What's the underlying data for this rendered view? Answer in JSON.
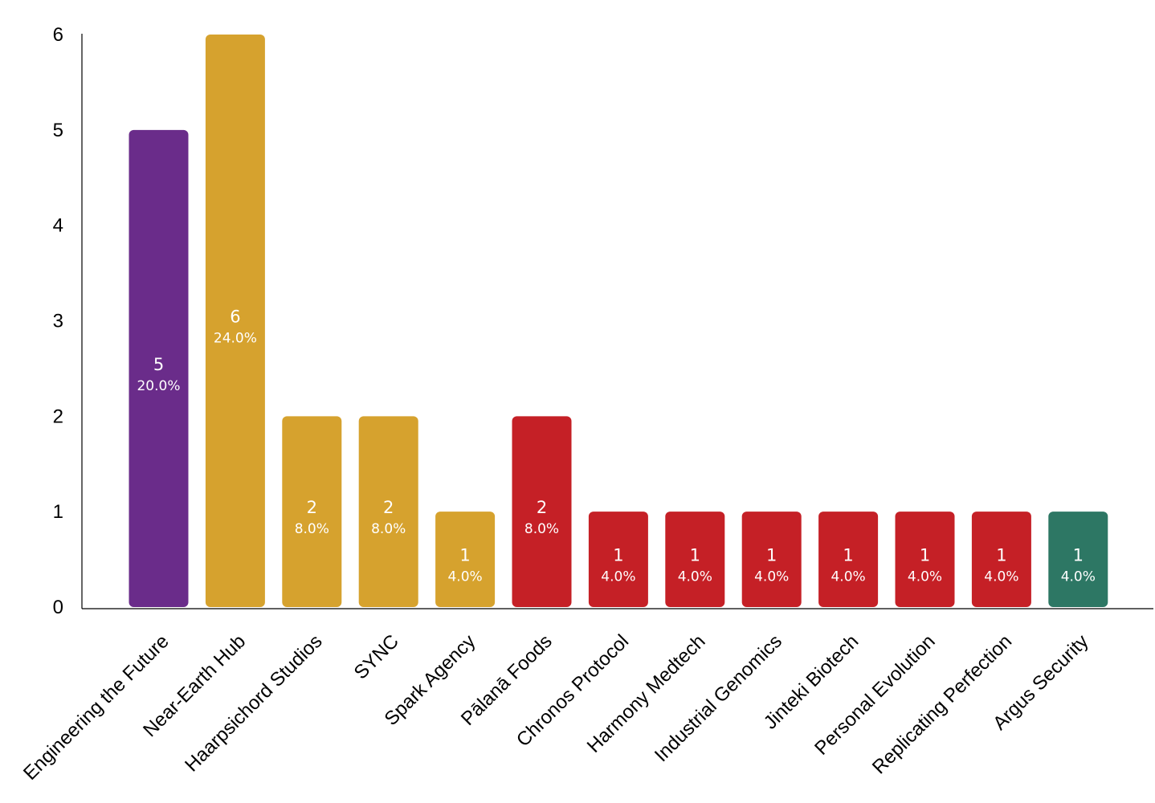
{
  "chart_data": {
    "type": "bar",
    "title": "",
    "xlabel": "",
    "ylabel": "",
    "ylim": [
      0,
      6
    ],
    "yticks": [
      "0",
      "1",
      "2",
      "3",
      "4",
      "5",
      "6"
    ],
    "grid": false,
    "legend": "none",
    "categories": [
      "Engineering the Future",
      "Near-Earth Hub",
      "Haarpsichord Studios",
      "SYNC",
      "Spark Agency",
      "Pālanā Foods",
      "Chronos Protocol",
      "Harmony Medtech",
      "Industrial Genomics",
      "Jinteki Biotech",
      "Personal Evolution",
      "Replicating Perfection",
      "Argus Security"
    ],
    "values": [
      5,
      6,
      2,
      2,
      1,
      2,
      1,
      1,
      1,
      1,
      1,
      1,
      1
    ],
    "percent_labels": [
      "20.0%",
      "24.0%",
      "8.0%",
      "8.0%",
      "4.0%",
      "8.0%",
      "4.0%",
      "4.0%",
      "4.0%",
      "4.0%",
      "4.0%",
      "4.0%",
      "4.0%"
    ],
    "colors": [
      "#6a2c8a",
      "#d6a22e",
      "#d6a22e",
      "#d6a22e",
      "#d6a22e",
      "#c52026",
      "#c52026",
      "#c52026",
      "#c52026",
      "#c52026",
      "#c52026",
      "#c52026",
      "#2d7764"
    ]
  }
}
